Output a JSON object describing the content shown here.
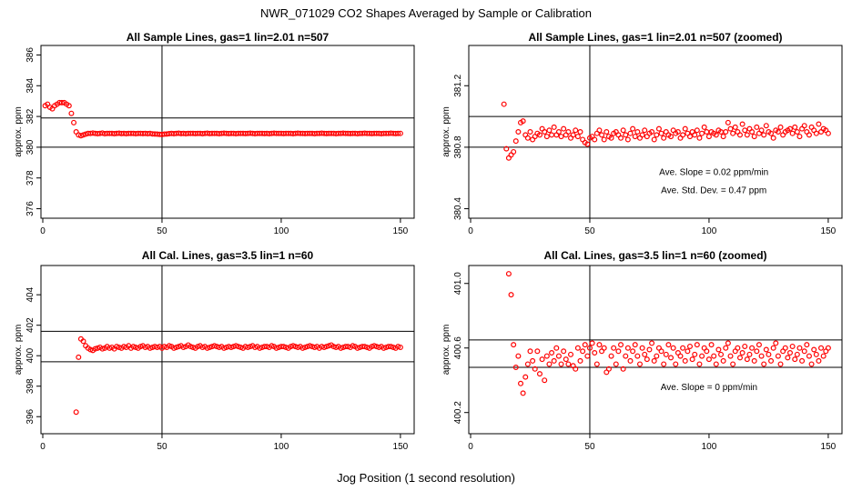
{
  "page": {
    "title": "NWR_071029  CO2 Shapes Averaged by Sample or Calibration",
    "xlabel": "Jog Position (1 second resolution)"
  },
  "colors": {
    "points": "#ff0000",
    "lines": "#000000"
  },
  "chart_data": [
    {
      "type": "scatter",
      "title": "All Sample Lines, gas=1 lin=2.01 n=507",
      "ylabel": "approx. ppm",
      "xlim": [
        0,
        155
      ],
      "ylim": [
        375.5,
        386.5
      ],
      "xticks": [
        "0",
        "50",
        "100",
        "150"
      ],
      "yticks": [
        "376",
        "378",
        "380",
        "382",
        "384",
        "386"
      ],
      "hlines": [
        380.0,
        381.9
      ],
      "vline": 50,
      "annotations": [],
      "x": [
        1,
        2,
        3,
        4,
        5,
        6,
        7,
        8,
        9,
        10,
        11,
        12,
        13,
        14,
        15,
        16,
        17,
        18,
        19,
        20,
        21,
        22,
        23,
        24,
        25,
        26,
        27,
        28,
        29,
        30,
        31,
        32,
        33,
        34,
        35,
        36,
        37,
        38,
        39,
        40,
        41,
        42,
        43,
        44,
        45,
        46,
        47,
        48,
        49,
        50,
        51,
        52,
        53,
        54,
        55,
        56,
        57,
        58,
        59,
        60,
        61,
        62,
        63,
        64,
        65,
        66,
        67,
        68,
        69,
        70,
        71,
        72,
        73,
        74,
        75,
        76,
        77,
        78,
        79,
        80,
        81,
        82,
        83,
        84,
        85,
        86,
        87,
        88,
        89,
        90,
        91,
        92,
        93,
        94,
        95,
        96,
        97,
        98,
        99,
        100,
        101,
        102,
        103,
        104,
        105,
        106,
        107,
        108,
        109,
        110,
        111,
        112,
        113,
        114,
        115,
        116,
        117,
        118,
        119,
        120,
        121,
        122,
        123,
        124,
        125,
        126,
        127,
        128,
        129,
        130,
        131,
        132,
        133,
        134,
        135,
        136,
        137,
        138,
        139,
        140,
        141,
        142,
        143,
        144,
        145,
        146,
        147,
        148,
        149,
        150
      ],
      "y": [
        382.7,
        382.8,
        382.6,
        382.5,
        382.7,
        382.8,
        382.9,
        382.9,
        382.9,
        382.8,
        382.7,
        382.2,
        381.6,
        381.0,
        380.8,
        380.75,
        380.8,
        380.85,
        380.9,
        380.9,
        380.92,
        380.9,
        380.88,
        380.9,
        380.92,
        380.88,
        380.9,
        380.9,
        380.9,
        380.88,
        380.9,
        380.91,
        380.89,
        380.9,
        380.88,
        380.9,
        380.9,
        380.9,
        380.88,
        380.9,
        380.9,
        380.89,
        380.9,
        380.88,
        380.9,
        380.87,
        380.86,
        380.85,
        380.84,
        380.83,
        380.85,
        380.86,
        380.88,
        380.9,
        380.88,
        380.9,
        380.91,
        380.89,
        380.9,
        380.88,
        380.9,
        380.9,
        380.9,
        380.89,
        380.9,
        380.9,
        380.88,
        380.9,
        380.91,
        380.89,
        380.9,
        380.9,
        380.9,
        380.88,
        380.9,
        380.91,
        380.9,
        380.89,
        380.9,
        380.9,
        380.88,
        380.9,
        380.9,
        380.9,
        380.89,
        380.9,
        380.91,
        380.9,
        380.88,
        380.9,
        380.9,
        380.9,
        380.89,
        380.9,
        380.88,
        380.9,
        380.91,
        380.9,
        380.9,
        380.9,
        380.89,
        380.9,
        380.9,
        380.9,
        380.88,
        380.9,
        380.91,
        380.9,
        380.9,
        380.89,
        380.9,
        380.9,
        380.9,
        380.88,
        380.9,
        380.9,
        380.91,
        380.9,
        380.89,
        380.9,
        380.9,
        380.9,
        380.88,
        380.9,
        380.9,
        380.91,
        380.9,
        380.9,
        380.89,
        380.9,
        380.9,
        380.88,
        380.9,
        380.9,
        380.91,
        380.9,
        380.9,
        380.89,
        380.9,
        380.9,
        380.9,
        380.88,
        380.9,
        380.9,
        380.9,
        380.91,
        380.9,
        380.89,
        380.9,
        380.9
      ]
    },
    {
      "type": "scatter",
      "title": "All Sample Lines, gas=1 lin=2.01 n=507 (zoomed)",
      "ylabel": "approx. ppm",
      "xlim": [
        0,
        155
      ],
      "ylim": [
        380.35,
        381.45
      ],
      "xticks": [
        "0",
        "50",
        "100",
        "150"
      ],
      "yticks": [
        "380.4",
        "380.8",
        "381.2"
      ],
      "hlines": [
        380.8,
        381.0
      ],
      "vline": 50,
      "annotations": [
        {
          "text": "Ave. Slope =  0.02  ppm/min",
          "x": 102,
          "y": 380.62
        },
        {
          "text": "Ave. Std. Dev. =  0.47  ppm",
          "x": 102,
          "y": 380.5
        }
      ],
      "x": [
        14,
        15,
        16,
        17,
        18,
        19,
        20,
        21,
        22,
        23,
        24,
        25,
        26,
        27,
        28,
        29,
        30,
        31,
        32,
        33,
        34,
        35,
        36,
        37,
        38,
        39,
        40,
        41,
        42,
        43,
        44,
        45,
        46,
        47,
        48,
        49,
        50,
        51,
        52,
        53,
        54,
        55,
        56,
        57,
        58,
        59,
        60,
        61,
        62,
        63,
        64,
        65,
        66,
        67,
        68,
        69,
        70,
        71,
        72,
        73,
        74,
        75,
        76,
        77,
        78,
        79,
        80,
        81,
        82,
        83,
        84,
        85,
        86,
        87,
        88,
        89,
        90,
        91,
        92,
        93,
        94,
        95,
        96,
        97,
        98,
        99,
        100,
        101,
        102,
        103,
        104,
        105,
        106,
        107,
        108,
        109,
        110,
        111,
        112,
        113,
        114,
        115,
        116,
        117,
        118,
        119,
        120,
        121,
        122,
        123,
        124,
        125,
        126,
        127,
        128,
        129,
        130,
        131,
        132,
        133,
        134,
        135,
        136,
        137,
        138,
        139,
        140,
        141,
        142,
        143,
        144,
        145,
        146,
        147,
        148,
        149,
        150
      ],
      "y": [
        381.08,
        380.79,
        380.73,
        380.75,
        380.77,
        380.84,
        380.9,
        380.96,
        380.97,
        380.88,
        380.86,
        380.9,
        380.85,
        380.87,
        380.89,
        380.88,
        380.92,
        380.9,
        380.87,
        380.91,
        380.88,
        380.93,
        380.88,
        380.9,
        380.87,
        380.92,
        380.88,
        380.9,
        380.86,
        380.88,
        380.91,
        380.87,
        380.9,
        380.85,
        380.83,
        380.82,
        380.86,
        380.87,
        380.85,
        380.89,
        380.91,
        380.88,
        380.85,
        380.9,
        380.87,
        380.86,
        380.89,
        380.9,
        380.88,
        380.86,
        380.91,
        380.88,
        380.85,
        380.89,
        380.92,
        380.87,
        380.9,
        380.86,
        380.88,
        380.91,
        380.87,
        380.89,
        380.9,
        380.85,
        380.88,
        380.92,
        380.89,
        380.86,
        380.9,
        380.88,
        380.87,
        380.91,
        380.89,
        380.9,
        380.86,
        380.88,
        380.92,
        380.89,
        380.87,
        380.9,
        380.88,
        380.91,
        380.86,
        380.89,
        380.93,
        380.9,
        380.87,
        380.9,
        380.89,
        380.88,
        380.91,
        380.9,
        380.87,
        380.9,
        380.96,
        380.92,
        380.89,
        380.93,
        380.9,
        380.88,
        380.95,
        380.91,
        380.88,
        380.92,
        380.9,
        380.87,
        380.93,
        380.89,
        380.91,
        380.88,
        380.94,
        380.9,
        380.89,
        380.86,
        380.91,
        380.9,
        380.93,
        380.88,
        380.9,
        380.91,
        380.92,
        380.89,
        380.93,
        380.9,
        380.87,
        380.92,
        380.94,
        380.9,
        380.88,
        380.93,
        380.91,
        380.89,
        380.95,
        380.9,
        380.92,
        380.91,
        380.89
      ]
    },
    {
      "type": "scatter",
      "title": "All Cal. Lines, gas=3.5 lin=1 n=60",
      "ylabel": "approx. ppm",
      "xlim": [
        0,
        155
      ],
      "ylim": [
        395.0,
        405.8
      ],
      "xticks": [
        "0",
        "50",
        "100",
        "150"
      ],
      "yticks": [
        "396",
        "398",
        "400",
        "402",
        "404"
      ],
      "hlines": [
        399.6,
        401.6
      ],
      "vline": 50,
      "annotations": [],
      "x": [
        14,
        15,
        16,
        17,
        18,
        19,
        20,
        21,
        22,
        23,
        24,
        25,
        26,
        27,
        28,
        29,
        30,
        31,
        32,
        33,
        34,
        35,
        36,
        37,
        38,
        39,
        40,
        41,
        42,
        43,
        44,
        45,
        46,
        47,
        48,
        49,
        50,
        51,
        52,
        53,
        54,
        55,
        56,
        57,
        58,
        59,
        60,
        61,
        62,
        63,
        64,
        65,
        66,
        67,
        68,
        69,
        70,
        71,
        72,
        73,
        74,
        75,
        76,
        77,
        78,
        79,
        80,
        81,
        82,
        83,
        84,
        85,
        86,
        87,
        88,
        89,
        90,
        91,
        92,
        93,
        94,
        95,
        96,
        97,
        98,
        99,
        100,
        101,
        102,
        103,
        104,
        105,
        106,
        107,
        108,
        109,
        110,
        111,
        112,
        113,
        114,
        115,
        116,
        117,
        118,
        119,
        120,
        121,
        122,
        123,
        124,
        125,
        126,
        127,
        128,
        129,
        130,
        131,
        132,
        133,
        134,
        135,
        136,
        137,
        138,
        139,
        140,
        141,
        142,
        143,
        144,
        145,
        146,
        147,
        148,
        149,
        150
      ],
      "y": [
        396.3,
        399.9,
        401.1,
        400.95,
        400.65,
        400.5,
        400.4,
        400.35,
        400.45,
        400.5,
        400.55,
        400.45,
        400.5,
        400.6,
        400.5,
        400.55,
        400.45,
        400.6,
        400.55,
        400.5,
        400.6,
        400.55,
        400.65,
        400.5,
        400.6,
        400.55,
        400.5,
        400.6,
        400.65,
        400.55,
        400.6,
        400.5,
        400.55,
        400.6,
        400.55,
        400.6,
        400.5,
        400.6,
        400.55,
        400.65,
        400.6,
        400.5,
        400.55,
        400.6,
        400.65,
        400.55,
        400.6,
        400.7,
        400.6,
        400.55,
        400.5,
        400.6,
        400.65,
        400.55,
        400.6,
        400.5,
        400.55,
        400.6,
        400.65,
        400.6,
        400.55,
        400.6,
        400.5,
        400.55,
        400.6,
        400.55,
        400.6,
        400.65,
        400.6,
        400.55,
        400.5,
        400.6,
        400.55,
        400.6,
        400.65,
        400.55,
        400.6,
        400.5,
        400.55,
        400.6,
        400.6,
        400.55,
        400.65,
        400.6,
        400.5,
        400.55,
        400.6,
        400.6,
        400.55,
        400.5,
        400.6,
        400.65,
        400.6,
        400.55,
        400.6,
        400.5,
        400.55,
        400.6,
        400.65,
        400.6,
        400.55,
        400.6,
        400.5,
        400.6,
        400.55,
        400.6,
        400.65,
        400.7,
        400.6,
        400.55,
        400.6,
        400.5,
        400.55,
        400.6,
        400.6,
        400.55,
        400.65,
        400.6,
        400.5,
        400.55,
        400.6,
        400.6,
        400.55,
        400.5,
        400.6,
        400.65,
        400.6,
        400.55,
        400.6,
        400.5,
        400.55,
        400.6,
        400.6,
        400.55,
        400.5,
        400.6,
        400.55
      ]
    },
    {
      "type": "scatter",
      "title": "All Cal. Lines, gas=3.5 lin=1 n=60 (zoomed)",
      "ylabel": "approx. ppm",
      "xlim": [
        0,
        155
      ],
      "ylim": [
        400.08,
        401.1
      ],
      "xticks": [
        "0",
        "50",
        "100",
        "150"
      ],
      "yticks": [
        "400.2",
        "400.6",
        "401.0"
      ],
      "hlines": [
        400.48,
        400.65
      ],
      "vline": 50,
      "annotations": [
        {
          "text": "Ave. Slope =  0  ppm/min",
          "x": 100,
          "y": 400.34
        }
      ],
      "x": [
        16,
        17,
        18,
        19,
        20,
        21,
        22,
        23,
        24,
        25,
        26,
        27,
        28,
        29,
        30,
        31,
        32,
        33,
        34,
        35,
        36,
        37,
        38,
        39,
        40,
        41,
        42,
        43,
        44,
        45,
        46,
        47,
        48,
        49,
        50,
        51,
        52,
        53,
        54,
        55,
        56,
        57,
        58,
        59,
        60,
        61,
        62,
        63,
        64,
        65,
        66,
        67,
        68,
        69,
        70,
        71,
        72,
        73,
        74,
        75,
        76,
        77,
        78,
        79,
        80,
        81,
        82,
        83,
        84,
        85,
        86,
        87,
        88,
        89,
        90,
        91,
        92,
        93,
        94,
        95,
        96,
        97,
        98,
        99,
        100,
        101,
        102,
        103,
        104,
        105,
        106,
        107,
        108,
        109,
        110,
        111,
        112,
        113,
        114,
        115,
        116,
        117,
        118,
        119,
        120,
        121,
        122,
        123,
        124,
        125,
        126,
        127,
        128,
        129,
        130,
        131,
        132,
        133,
        134,
        135,
        136,
        137,
        138,
        139,
        140,
        141,
        142,
        143,
        144,
        145,
        146,
        147,
        148,
        149,
        150
      ],
      "y": [
        401.06,
        400.93,
        400.62,
        400.48,
        400.55,
        400.38,
        400.32,
        400.42,
        400.5,
        400.58,
        400.52,
        400.47,
        400.58,
        400.44,
        400.53,
        400.4,
        400.55,
        400.5,
        400.57,
        400.52,
        400.6,
        400.55,
        400.5,
        400.58,
        400.53,
        400.5,
        400.56,
        400.49,
        400.47,
        400.6,
        400.52,
        400.58,
        400.62,
        400.55,
        400.6,
        400.63,
        400.57,
        400.5,
        400.62,
        400.58,
        400.6,
        400.45,
        400.47,
        400.55,
        400.6,
        400.5,
        400.58,
        400.62,
        400.47,
        400.55,
        400.6,
        400.52,
        400.58,
        400.62,
        400.55,
        400.5,
        400.6,
        400.56,
        400.53,
        400.59,
        400.63,
        400.52,
        400.55,
        400.6,
        400.58,
        400.5,
        400.56,
        400.62,
        400.54,
        400.6,
        400.5,
        400.57,
        400.55,
        400.6,
        400.52,
        400.58,
        400.61,
        400.53,
        400.56,
        400.62,
        400.5,
        400.55,
        400.6,
        400.58,
        400.53,
        400.62,
        400.55,
        400.5,
        400.59,
        400.56,
        400.52,
        400.6,
        400.63,
        400.55,
        400.5,
        400.58,
        400.6,
        400.54,
        400.57,
        400.61,
        400.53,
        400.56,
        400.6,
        400.52,
        400.58,
        400.62,
        400.55,
        400.5,
        400.59,
        400.56,
        400.52,
        400.6,
        400.63,
        400.55,
        400.5,
        400.58,
        400.6,
        400.54,
        400.57,
        400.61,
        400.53,
        400.56,
        400.6,
        400.52,
        400.58,
        400.62,
        400.55,
        400.5,
        400.59,
        400.56,
        400.52,
        400.6,
        400.55,
        400.58,
        400.6
      ]
    }
  ]
}
